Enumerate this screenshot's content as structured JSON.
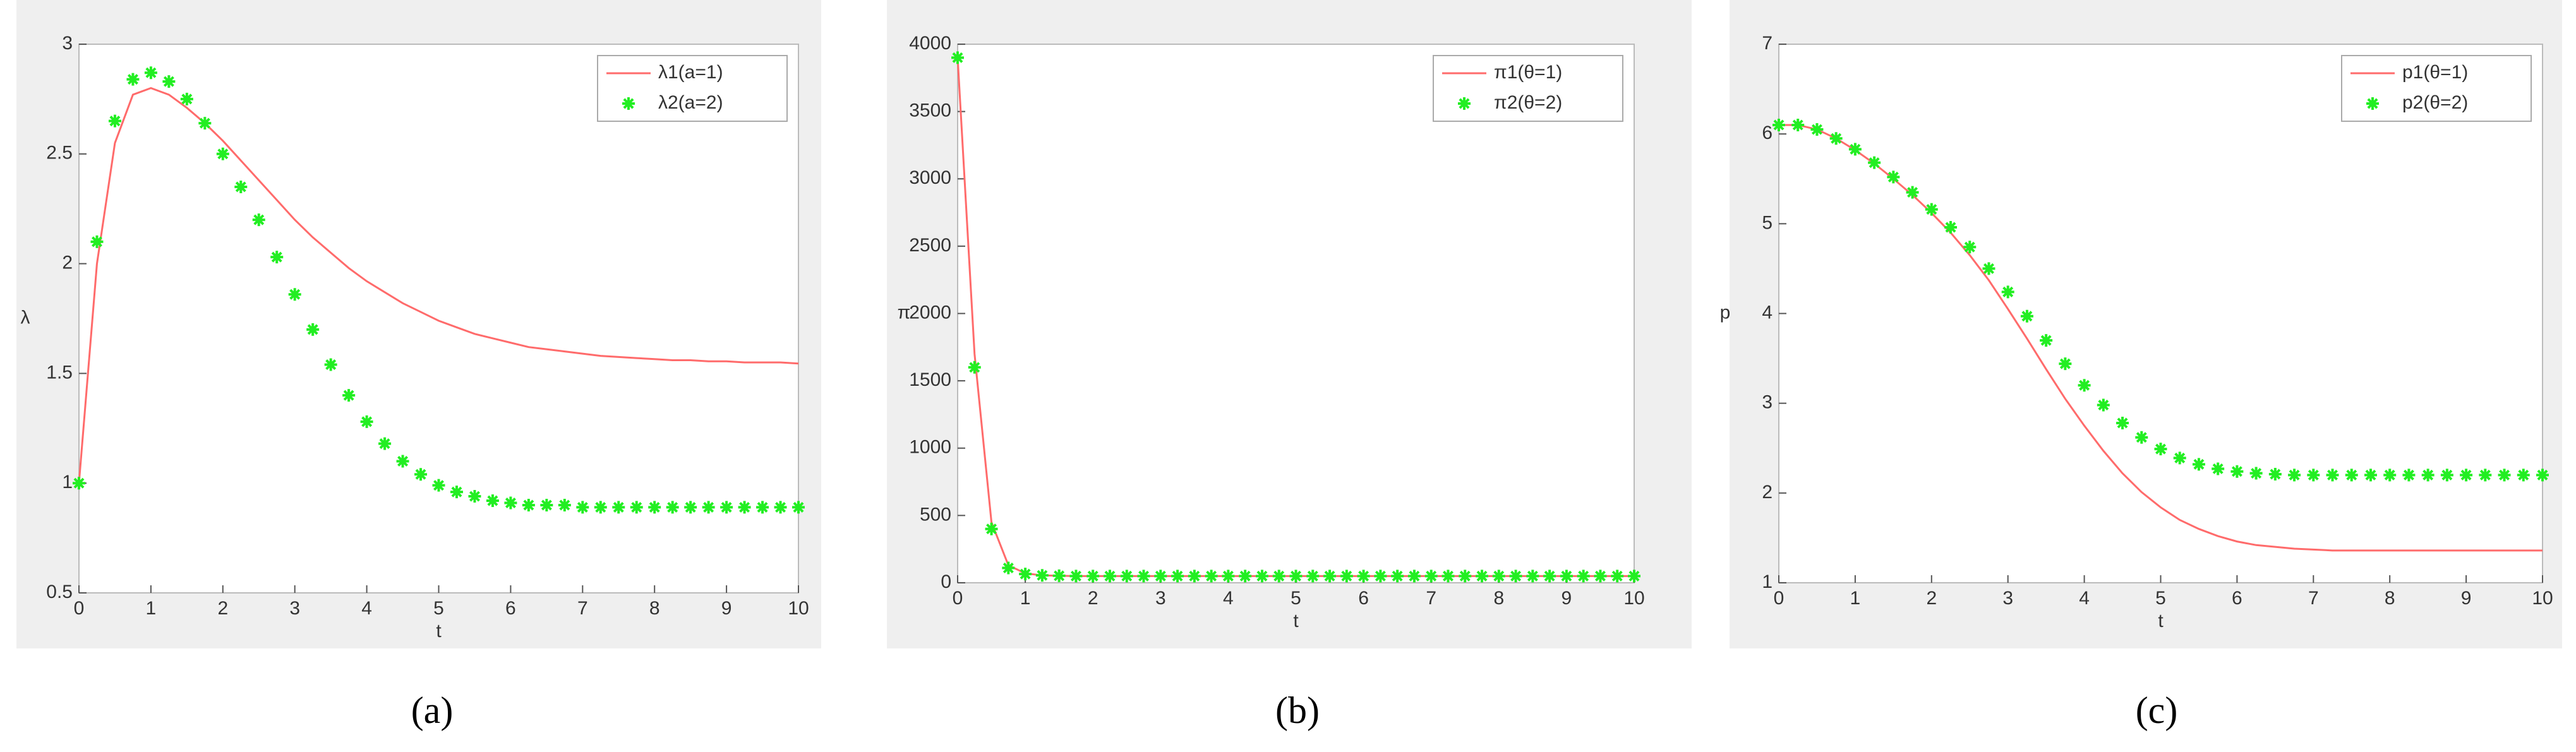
{
  "chart_data": [
    {
      "type": "line",
      "caption": "(a)",
      "xlabel": "t",
      "ylabel": "λ",
      "legend": "upper right",
      "x": [
        0,
        0.25,
        0.5,
        0.75,
        1,
        1.25,
        1.5,
        1.75,
        2,
        2.25,
        2.5,
        2.75,
        3,
        3.25,
        3.5,
        3.75,
        4,
        4.25,
        4.5,
        4.75,
        5,
        5.25,
        5.5,
        5.75,
        6,
        6.25,
        6.5,
        6.75,
        7,
        7.25,
        7.5,
        7.75,
        8,
        8.25,
        8.5,
        8.75,
        9,
        9.25,
        9.5,
        9.75,
        10
      ],
      "xlim": [
        0,
        10
      ],
      "xticks": [
        0,
        1,
        2,
        3,
        4,
        5,
        6,
        7,
        8,
        9,
        10
      ],
      "ylim": [
        0.5,
        3
      ],
      "yticks": [
        0.5,
        1,
        1.5,
        2,
        2.5,
        3
      ],
      "series": [
        {
          "name": "λ1(a=1)",
          "color": "#ff6b6b",
          "marker": "line",
          "values": [
            1.0,
            2.0,
            2.55,
            2.77,
            2.8,
            2.77,
            2.71,
            2.64,
            2.56,
            2.47,
            2.38,
            2.29,
            2.2,
            2.12,
            2.05,
            1.98,
            1.92,
            1.87,
            1.82,
            1.78,
            1.74,
            1.71,
            1.68,
            1.66,
            1.64,
            1.62,
            1.61,
            1.6,
            1.59,
            1.58,
            1.575,
            1.57,
            1.565,
            1.56,
            1.56,
            1.555,
            1.555,
            1.55,
            1.55,
            1.55,
            1.545
          ]
        },
        {
          "name": "λ2(a=2)",
          "color": "#22ee22",
          "marker": "star",
          "values": [
            1.0,
            2.1,
            2.65,
            2.84,
            2.87,
            2.83,
            2.75,
            2.64,
            2.5,
            2.35,
            2.2,
            2.03,
            1.86,
            1.7,
            1.54,
            1.4,
            1.28,
            1.18,
            1.1,
            1.04,
            0.99,
            0.96,
            0.94,
            0.92,
            0.91,
            0.9,
            0.9,
            0.9,
            0.89,
            0.89,
            0.89,
            0.89,
            0.89,
            0.89,
            0.89,
            0.89,
            0.89,
            0.89,
            0.89,
            0.89,
            0.89
          ]
        }
      ]
    },
    {
      "type": "line",
      "caption": "(b)",
      "xlabel": "t",
      "ylabel": "π",
      "legend": "upper right",
      "x": [
        0,
        0.25,
        0.5,
        0.75,
        1,
        1.25,
        1.5,
        1.75,
        2,
        2.25,
        2.5,
        2.75,
        3,
        3.25,
        3.5,
        3.75,
        4,
        4.25,
        4.5,
        4.75,
        5,
        5.25,
        5.5,
        5.75,
        6,
        6.25,
        6.5,
        6.75,
        7,
        7.25,
        7.5,
        7.75,
        8,
        8.25,
        8.5,
        8.75,
        9,
        9.25,
        9.5,
        9.75,
        10
      ],
      "xlim": [
        0,
        10
      ],
      "xticks": [
        0,
        1,
        2,
        3,
        4,
        5,
        6,
        7,
        8,
        9,
        10
      ],
      "ylim": [
        0,
        4000
      ],
      "yticks": [
        0,
        500,
        1000,
        1500,
        2000,
        2500,
        3000,
        3500,
        4000
      ],
      "series": [
        {
          "name": "π1(θ=1)",
          "color": "#ff6b6b",
          "marker": "line",
          "values": [
            3900,
            1700,
            450,
            130,
            70,
            55,
            52,
            50,
            50,
            50,
            50,
            50,
            50,
            50,
            50,
            50,
            50,
            50,
            50,
            50,
            50,
            50,
            50,
            50,
            50,
            50,
            50,
            50,
            50,
            50,
            50,
            50,
            50,
            50,
            50,
            50,
            50,
            50,
            50,
            50,
            50
          ]
        },
        {
          "name": "π2(θ=2)",
          "color": "#22ee22",
          "marker": "star",
          "values": [
            3900,
            1600,
            400,
            110,
            65,
            55,
            52,
            50,
            50,
            50,
            50,
            50,
            50,
            50,
            50,
            50,
            50,
            50,
            50,
            50,
            50,
            50,
            50,
            50,
            50,
            50,
            50,
            50,
            50,
            50,
            50,
            50,
            50,
            50,
            50,
            50,
            50,
            50,
            50,
            50,
            50
          ]
        }
      ]
    },
    {
      "type": "line",
      "caption": "(c)",
      "xlabel": "t",
      "ylabel": "p",
      "legend": "upper right",
      "x": [
        0,
        0.25,
        0.5,
        0.75,
        1,
        1.25,
        1.5,
        1.75,
        2,
        2.25,
        2.5,
        2.75,
        3,
        3.25,
        3.5,
        3.75,
        4,
        4.25,
        4.5,
        4.75,
        5,
        5.25,
        5.5,
        5.75,
        6,
        6.25,
        6.5,
        6.75,
        7,
        7.25,
        7.5,
        7.75,
        8,
        8.25,
        8.5,
        8.75,
        9,
        9.25,
        9.5,
        9.75,
        10
      ],
      "xlim": [
        0,
        10
      ],
      "xticks": [
        0,
        1,
        2,
        3,
        4,
        5,
        6,
        7,
        8,
        9,
        10
      ],
      "ylim": [
        1,
        7
      ],
      "yticks": [
        1,
        2,
        3,
        4,
        5,
        6,
        7
      ],
      "series": [
        {
          "name": "p1(θ=1)",
          "color": "#ff6b6b",
          "marker": "line",
          "values": [
            6.1,
            6.1,
            6.05,
            5.95,
            5.82,
            5.67,
            5.5,
            5.32,
            5.12,
            4.9,
            4.65,
            4.37,
            4.05,
            3.72,
            3.38,
            3.05,
            2.75,
            2.47,
            2.22,
            2.01,
            1.84,
            1.7,
            1.6,
            1.52,
            1.46,
            1.42,
            1.4,
            1.38,
            1.37,
            1.36,
            1.36,
            1.36,
            1.36,
            1.36,
            1.36,
            1.36,
            1.36,
            1.36,
            1.36,
            1.36,
            1.36
          ]
        },
        {
          "name": "p2(θ=2)",
          "color": "#22ee22",
          "marker": "star",
          "values": [
            6.1,
            6.1,
            6.05,
            5.95,
            5.83,
            5.68,
            5.52,
            5.35,
            5.16,
            4.96,
            4.74,
            4.5,
            4.24,
            3.97,
            3.7,
            3.44,
            3.2,
            2.98,
            2.78,
            2.62,
            2.49,
            2.39,
            2.32,
            2.27,
            2.24,
            2.22,
            2.21,
            2.2,
            2.2,
            2.2,
            2.2,
            2.2,
            2.2,
            2.2,
            2.2,
            2.2,
            2.2,
            2.2,
            2.2,
            2.2,
            2.2
          ]
        }
      ]
    }
  ]
}
